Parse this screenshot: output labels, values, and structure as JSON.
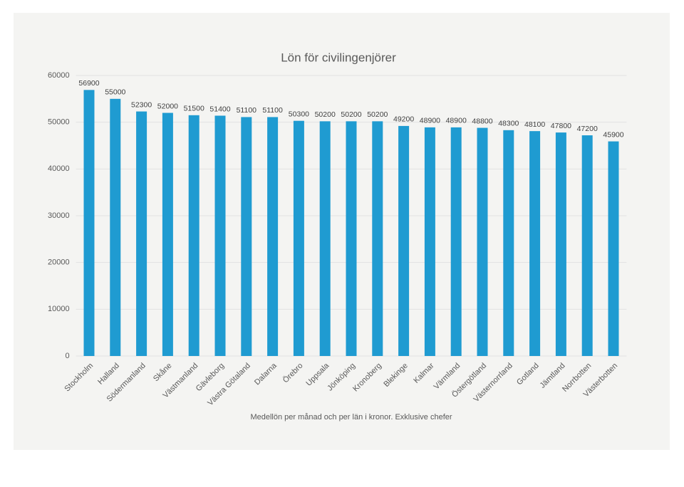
{
  "chart_data": {
    "type": "bar",
    "title": "Lön för civilingenjörer",
    "x_label": "Medellön per månad och per län i kronor. Exklusive chefer",
    "categories": [
      "Stockholm",
      "Halland",
      "Södermanland",
      "Skåne",
      "Västmanland",
      "Gävleborg",
      "Västra Götaland",
      "Dalarna",
      "Örebro",
      "Uppsala",
      "Jönköping",
      "Kronoberg",
      "Blekinge",
      "Kalmar",
      "Värmland",
      "Östergötland",
      "Västernorrland",
      "Gotland",
      "Jämtland",
      "Norrbotten",
      "Västerbotten"
    ],
    "values": [
      56900,
      55000,
      52300,
      52000,
      51500,
      51400,
      51100,
      51100,
      50300,
      50200,
      50200,
      50200,
      49200,
      48900,
      48900,
      48800,
      48300,
      48100,
      47800,
      47200,
      45900
    ],
    "color": "#1f9bd1",
    "ylim": [
      0,
      60000
    ],
    "yticks": [
      0,
      10000,
      20000,
      30000,
      40000,
      50000,
      60000
    ],
    "grid": true
  }
}
